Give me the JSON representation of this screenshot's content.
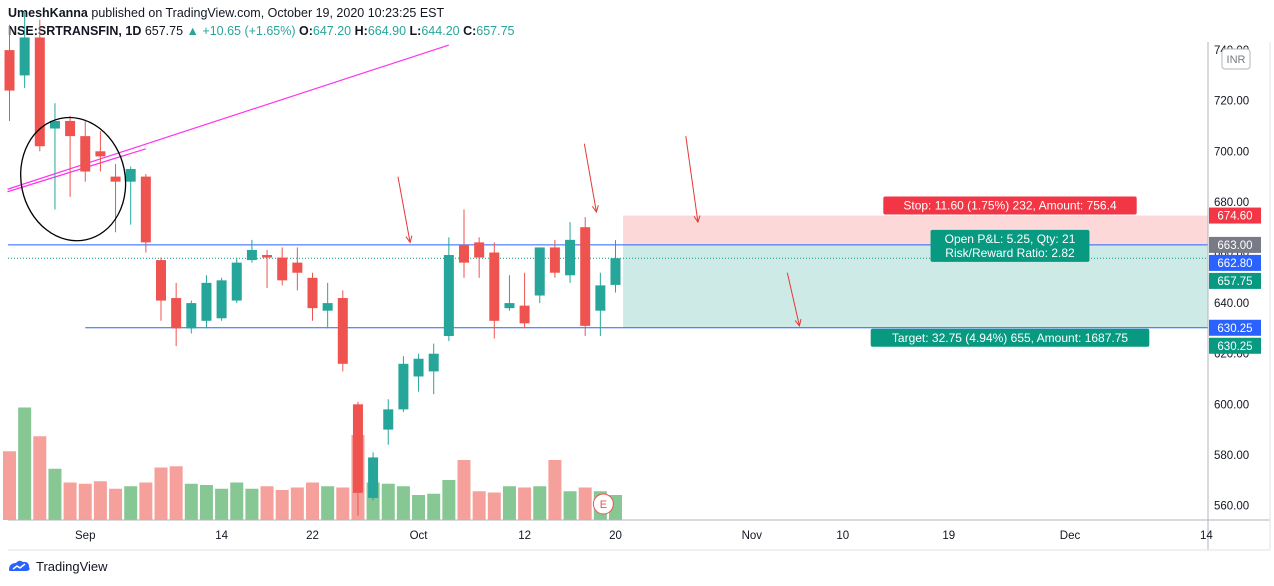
{
  "publish_line": {
    "author": "UmeshKanna",
    "text": "published on TradingView.com, October 19, 2020 10:23:25 EST"
  },
  "symbol_line": {
    "symbol": "NSE:SRTRANSFIN, 1D",
    "last": "657.75",
    "arrow": "▲",
    "change": "+10.65 (+1.65%)",
    "o_key": "O:",
    "o": "647.20",
    "h_key": "H:",
    "h": "664.90",
    "l_key": "L:",
    "l": "644.20",
    "c_key": "C:",
    "c": "657.75"
  },
  "currency_badge": "INR",
  "earnings_marker": "E",
  "footer": {
    "brand": "TradingView"
  },
  "colors": {
    "up": "#26a69a",
    "down": "#ef5350",
    "vol_up": "#86c794",
    "vol_down": "#f5a09a",
    "trendline": "#ff33ee",
    "hline": "#2962ff",
    "stop_zone": "#fcd9d8",
    "target_zone": "#cdeae7",
    "stop_label": "#f23645",
    "target_label": "#089981",
    "annotation": "#e53935"
  },
  "chart_data": {
    "type": "candlestick",
    "ylim": [
      552,
      742
    ],
    "y_ticks": [
      560,
      580,
      600,
      620,
      640,
      660,
      680,
      700,
      720,
      740
    ],
    "y_tick_labels": [
      "560.00",
      "580.00",
      "600.00",
      "620.00",
      "640.00",
      "660.00",
      "680.00",
      "700.00",
      "720.00",
      "740.00"
    ],
    "x_tick_labels": [
      {
        "label": "Sep",
        "date": "2020-09-01"
      },
      {
        "label": "14",
        "date": "2020-09-14"
      },
      {
        "label": "22",
        "date": "2020-09-22"
      },
      {
        "label": "Oct",
        "date": "2020-10-01"
      },
      {
        "label": "12",
        "date": "2020-10-12"
      },
      {
        "label": "20",
        "date": "2020-10-20"
      },
      {
        "label": "Nov",
        "date": "2020-11-02"
      },
      {
        "label": "10",
        "date": "2020-11-10"
      },
      {
        "label": "19",
        "date": "2020-11-19"
      },
      {
        "label": "Dec",
        "date": "2020-12-01"
      },
      {
        "label": "14",
        "date": "2020-12-14"
      }
    ],
    "candles": [
      {
        "o": 740,
        "h": 750,
        "l": 712,
        "c": 724
      },
      {
        "o": 730,
        "h": 755,
        "l": 725,
        "c": 745
      },
      {
        "o": 745,
        "h": 752,
        "l": 700,
        "c": 702
      },
      {
        "o": 709,
        "h": 719,
        "l": 677,
        "c": 712
      },
      {
        "o": 712,
        "h": 714,
        "l": 682,
        "c": 706
      },
      {
        "o": 706,
        "h": 712,
        "l": 688,
        "c": 692
      },
      {
        "o": 700,
        "h": 708,
        "l": 692,
        "c": 698
      },
      {
        "o": 690,
        "h": 695,
        "l": 668,
        "c": 688
      },
      {
        "o": 688,
        "h": 694,
        "l": 671,
        "c": 693
      },
      {
        "o": 690,
        "h": 691,
        "l": 660,
        "c": 664
      },
      {
        "o": 657,
        "h": 658,
        "l": 633,
        "c": 641
      },
      {
        "o": 642,
        "h": 648,
        "l": 623,
        "c": 630
      },
      {
        "o": 630,
        "h": 641,
        "l": 628,
        "c": 640
      },
      {
        "o": 633,
        "h": 651,
        "l": 630,
        "c": 648
      },
      {
        "o": 634,
        "h": 650,
        "l": 633,
        "c": 649
      },
      {
        "o": 641,
        "h": 658,
        "l": 640,
        "c": 656
      },
      {
        "o": 657,
        "h": 665,
        "l": 656,
        "c": 661
      },
      {
        "o": 659,
        "h": 661,
        "l": 646,
        "c": 658
      },
      {
        "o": 658,
        "h": 662,
        "l": 647,
        "c": 649
      },
      {
        "o": 656,
        "h": 662,
        "l": 645,
        "c": 652
      },
      {
        "o": 650,
        "h": 652,
        "l": 633,
        "c": 638
      },
      {
        "o": 637,
        "h": 648,
        "l": 630,
        "c": 640
      },
      {
        "o": 642,
        "h": 645,
        "l": 613,
        "c": 616
      },
      {
        "o": 600,
        "h": 601,
        "l": 556,
        "c": 565
      },
      {
        "o": 563,
        "h": 581,
        "l": 562,
        "c": 579
      },
      {
        "o": 590,
        "h": 602,
        "l": 584,
        "c": 598
      },
      {
        "o": 598,
        "h": 619,
        "l": 597,
        "c": 616
      },
      {
        "o": 611,
        "h": 620,
        "l": 605,
        "c": 618
      },
      {
        "o": 613,
        "h": 624,
        "l": 604,
        "c": 620
      },
      {
        "o": 627,
        "h": 666,
        "l": 625,
        "c": 659
      },
      {
        "o": 663,
        "h": 677,
        "l": 650,
        "c": 656
      },
      {
        "o": 664,
        "h": 666,
        "l": 650,
        "c": 658
      },
      {
        "o": 660,
        "h": 664,
        "l": 626,
        "c": 633
      },
      {
        "o": 638,
        "h": 651,
        "l": 637,
        "c": 640
      },
      {
        "o": 639,
        "h": 652,
        "l": 630,
        "c": 632
      },
      {
        "o": 643,
        "h": 662,
        "l": 640,
        "c": 662
      },
      {
        "o": 662,
        "h": 665,
        "l": 650,
        "c": 652
      },
      {
        "o": 651,
        "h": 672,
        "l": 648,
        "c": 665
      },
      {
        "o": 670,
        "h": 674,
        "l": 627,
        "c": 631
      },
      {
        "o": 637,
        "h": 652,
        "l": 627,
        "c": 647
      },
      {
        "o": 647.2,
        "h": 664.9,
        "l": 644.2,
        "c": 657.75
      }
    ],
    "volume_relative": [
      0.55,
      0.9,
      0.67,
      0.41,
      0.3,
      0.29,
      0.31,
      0.25,
      0.27,
      0.3,
      0.42,
      0.43,
      0.29,
      0.28,
      0.25,
      0.3,
      0.25,
      0.27,
      0.24,
      0.26,
      0.3,
      0.27,
      0.26,
      0.68,
      0.3,
      0.29,
      0.27,
      0.2,
      0.21,
      0.32,
      0.48,
      0.23,
      0.22,
      0.27,
      0.26,
      0.27,
      0.48,
      0.23,
      0.26,
      0.23,
      0.2
    ],
    "horizontal_levels": [
      663.0,
      630.25
    ],
    "trendline": {
      "from": {
        "bar": 0,
        "price": 685
      },
      "to": {
        "bar": 29,
        "price": 742
      }
    },
    "position": {
      "type": "long",
      "entry": 663.0,
      "stop": 674.6,
      "target": 630.25,
      "start_bar": 40.5,
      "end_bar": 74.5,
      "stop_label": "Stop: 11.60 (1.75%) 232, Amount: 756.4",
      "target_label": "Target: 32.75 (4.94%) 655, Amount: 1687.75",
      "pnl_label": "Open P&L: 5.25, Qty: 21",
      "rr_label": "Risk/Reward Ratio: 2.82"
    },
    "price_labels": [
      {
        "value": 674.6,
        "text": "674.60",
        "color": "#f23645"
      },
      {
        "value": 663.0,
        "text": "663.00",
        "color": "#787b86"
      },
      {
        "value": 662.8,
        "text": "662.80",
        "color": "#2962ff"
      },
      {
        "value": 657.75,
        "text": "657.75",
        "color": "#089981"
      },
      {
        "value": 630.25,
        "text": "630.25",
        "color": "#2962ff"
      },
      {
        "value": 630.25,
        "text": "630.25",
        "color": "#089981"
      }
    ]
  }
}
